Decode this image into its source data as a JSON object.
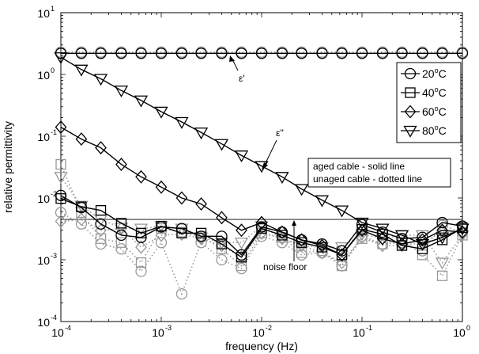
{
  "chart_data": {
    "type": "line",
    "title": "",
    "xlabel": "frequency (Hz)",
    "ylabel": "relative permittivity",
    "xscale": "log",
    "yscale": "log",
    "xlim": [
      0.0001,
      1
    ],
    "ylim": [
      0.0001,
      10
    ],
    "x_tick_labels": [
      {
        "base": "10",
        "exp": "-4"
      },
      {
        "base": "10",
        "exp": "-3"
      },
      {
        "base": "10",
        "exp": "-2"
      },
      {
        "base": "10",
        "exp": "-1"
      },
      {
        "base": "10",
        "exp": "0"
      }
    ],
    "y_tick_labels": [
      {
        "base": "10",
        "exp": "-4"
      },
      {
        "base": "10",
        "exp": "-3"
      },
      {
        "base": "10",
        "exp": "-2"
      },
      {
        "base": "10",
        "exp": "-1"
      },
      {
        "base": "10",
        "exp": "0"
      },
      {
        "base": "10",
        "exp": "1"
      }
    ],
    "legend": {
      "placement": "top-right",
      "entries": [
        {
          "label": "20",
          "unit": "C",
          "marker": "circle"
        },
        {
          "label": "40",
          "unit": "C",
          "marker": "square"
        },
        {
          "label": "60",
          "unit": "C",
          "marker": "diamond"
        },
        {
          "label": "80",
          "unit": "C",
          "marker": "triangle-down"
        }
      ],
      "degree_symbol": "o"
    },
    "annotations": {
      "eps_prime": "ε'",
      "eps_double_prime": "ε''",
      "noise_floor": "noise floor",
      "note_line1": "aged cable - solid line",
      "note_line2": "unaged cable - dotted line"
    },
    "noise_floor_value": 0.0045,
    "x": [
      0.0001,
      0.00016,
      0.00025,
      0.0004,
      0.00063,
      0.001,
      0.0016,
      0.0025,
      0.004,
      0.0063,
      0.01,
      0.016,
      0.025,
      0.04,
      0.063,
      0.1,
      0.16,
      0.25,
      0.4,
      0.63,
      1.0
    ],
    "colors": {
      "aged": "#000000",
      "unaged": "#999999",
      "axis": "#000000"
    },
    "series": [
      {
        "name": "20",
        "group": "aged",
        "quantity": "eps_prime",
        "marker": "circle",
        "values": [
          2.2,
          2.2,
          2.2,
          2.2,
          2.2,
          2.2,
          2.2,
          2.2,
          2.2,
          2.2,
          2.2,
          2.2,
          2.2,
          2.2,
          2.2,
          2.2,
          2.2,
          2.2,
          2.2,
          2.2,
          2.2
        ]
      },
      {
        "name": "20",
        "group": "unaged",
        "quantity": "eps_prime",
        "marker": "circle",
        "values": [
          2.3,
          2.3,
          2.3,
          2.3,
          2.3,
          2.3,
          2.3,
          2.3,
          2.3,
          2.3,
          2.3,
          2.3,
          2.3,
          2.3,
          2.3,
          2.3,
          2.3,
          2.3,
          2.3,
          2.3,
          2.3
        ]
      },
      {
        "name": "20",
        "group": "aged",
        "quantity": "eps_double_prime",
        "marker": "circle",
        "values": [
          0.011,
          0.007,
          0.0038,
          0.0025,
          0.0023,
          0.0034,
          0.0032,
          0.0024,
          0.0024,
          0.0012,
          0.0034,
          0.0028,
          0.0021,
          0.0018,
          0.0014,
          0.0037,
          0.0028,
          0.0022,
          0.0023,
          0.004,
          0.0035
        ]
      },
      {
        "name": "20",
        "group": "unaged",
        "quantity": "eps_double_prime",
        "marker": "circle",
        "values": [
          0.0058,
          0.0038,
          0.0018,
          0.0015,
          0.00065,
          0.0019,
          0.00028,
          0.0019,
          0.001,
          0.00072,
          0.0024,
          0.0019,
          0.0012,
          0.0013,
          0.0008,
          0.0024,
          0.0018,
          0.0019,
          0.0014,
          0.0036,
          0.0028
        ]
      },
      {
        "name": "40",
        "group": "aged",
        "quantity": "eps_double_prime",
        "marker": "square",
        "values": [
          0.0098,
          0.0072,
          0.0063,
          0.0039,
          0.0027,
          0.0035,
          0.0027,
          0.0027,
          0.0018,
          0.0011,
          0.0032,
          0.0025,
          0.0019,
          0.0016,
          0.0012,
          0.0031,
          0.0026,
          0.0017,
          0.0015,
          0.0021,
          0.0033
        ]
      },
      {
        "name": "40",
        "group": "unaged",
        "quantity": "eps_double_prime",
        "marker": "square",
        "values": [
          0.035,
          0.0058,
          0.0022,
          0.0019,
          0.0009,
          0.0032,
          0.0028,
          0.0024,
          0.0015,
          0.0008,
          0.0027,
          0.0023,
          0.0013,
          0.0014,
          0.0008,
          0.0022,
          0.0018,
          0.0021,
          0.0012,
          0.00055,
          0.0025
        ]
      },
      {
        "name": "60",
        "group": "aged",
        "quantity": "eps_double_prime",
        "marker": "diamond",
        "values": [
          0.14,
          0.09,
          0.065,
          0.035,
          0.022,
          0.015,
          0.01,
          0.008,
          0.0048,
          0.003,
          0.004,
          0.0028,
          0.0021,
          0.0017,
          0.0012,
          0.003,
          0.0022,
          0.0018,
          0.0021,
          0.003,
          0.0028
        ]
      },
      {
        "name": "60",
        "group": "unaged",
        "quantity": "eps_double_prime",
        "marker": "diamond",
        "values": [
          0.0042,
          0.0045,
          0.003,
          0.0032,
          0.0016,
          0.0025,
          0.0026,
          0.0022,
          0.0017,
          0.0011,
          0.0027,
          0.0022,
          0.0017,
          0.0013,
          0.0009,
          0.0023,
          0.0017,
          0.0017,
          0.0019,
          0.0028,
          0.0027
        ]
      },
      {
        "name": "80",
        "group": "aged",
        "quantity": "eps_double_prime",
        "marker": "triangle-down",
        "values": [
          1.9,
          1.2,
          0.85,
          0.55,
          0.38,
          0.25,
          0.17,
          0.115,
          0.075,
          0.049,
          0.033,
          0.022,
          0.014,
          0.0092,
          0.0063,
          0.004,
          0.0032,
          0.0025,
          0.0018,
          0.0023,
          0.0032
        ]
      },
      {
        "name": "80",
        "group": "unaged",
        "quantity": "eps_double_prime",
        "marker": "triangle-down",
        "values": [
          0.022,
          0.0075,
          0.0045,
          0.0033,
          0.0032,
          0.0035,
          0.0032,
          0.0023,
          0.0019,
          0.0019,
          0.0035,
          0.0022,
          0.0017,
          0.0016,
          0.0016,
          0.0026,
          0.0022,
          0.0025,
          0.0025,
          0.0009,
          0.0025
        ]
      }
    ]
  }
}
